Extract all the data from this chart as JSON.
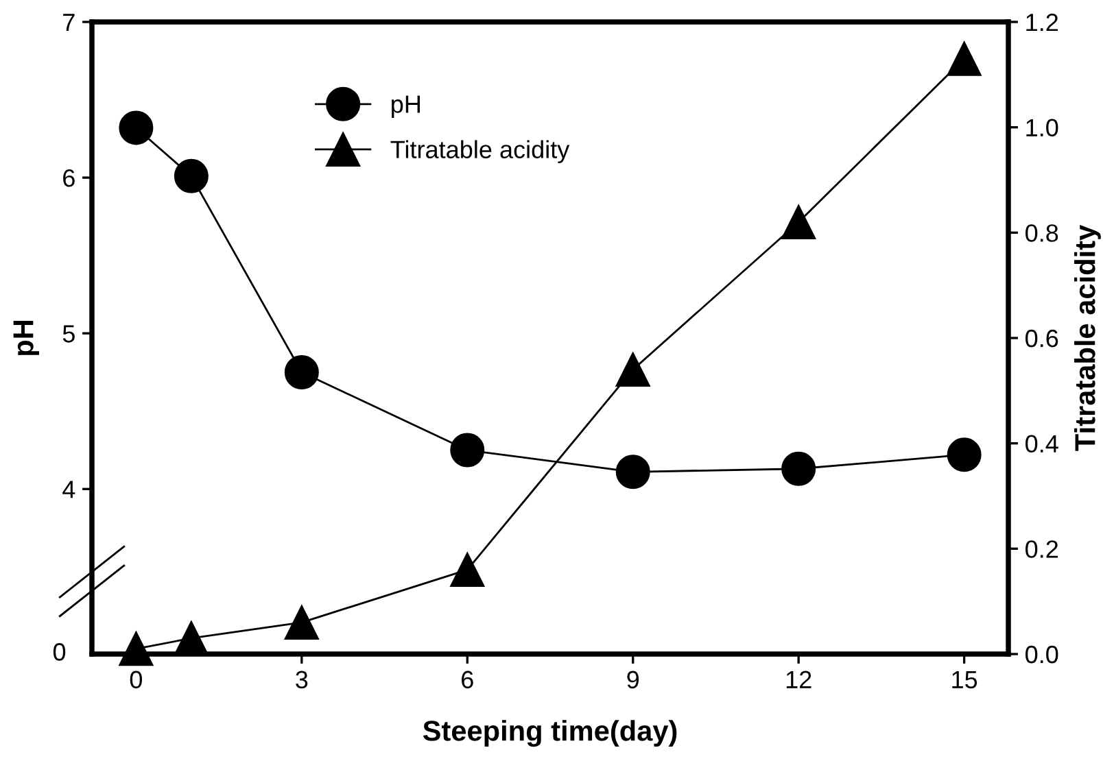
{
  "chart_data": {
    "type": "line",
    "xlabel": "Steeping time(day)",
    "ylabel": "pH",
    "y2label": "Titratable acidity",
    "x": [
      0,
      1,
      3,
      6,
      9,
      12,
      15
    ],
    "xlim": [
      -0.8,
      15.8
    ],
    "xticks": [
      0,
      3,
      6,
      9,
      12,
      15
    ],
    "ylim": [
      2.94,
      7
    ],
    "yticks": [
      4,
      5,
      6,
      7
    ],
    "annotations": [
      "0"
    ],
    "y2lim": [
      0,
      1.2
    ],
    "y2ticks": [
      {
        "value": 0,
        "label": "0.0"
      },
      {
        "value": 0.2,
        "label": "0.2"
      },
      {
        "value": 0.4,
        "label": "0.4"
      },
      {
        "value": 0.6,
        "label": "0.6"
      },
      {
        "value": 0.8,
        "label": "0.8"
      },
      {
        "value": 1.0,
        "label": "1.0"
      },
      {
        "value": 1.2,
        "label": "1.2"
      }
    ],
    "series": [
      {
        "name": "pH",
        "color": "#000000",
        "marker": "circle",
        "values": [
          6.32,
          6.01,
          4.75,
          4.25,
          4.11,
          4.13,
          4.22
        ]
      },
      {
        "name": "Titratable acidity",
        "color": "#000000",
        "marker": "triangle",
        "axis": "y2",
        "values": [
          0.01,
          0.03,
          0.06,
          0.16,
          0.54,
          0.82,
          1.13
        ]
      }
    ],
    "legend": "top left",
    "grid": false,
    "line_style": "solid"
  }
}
